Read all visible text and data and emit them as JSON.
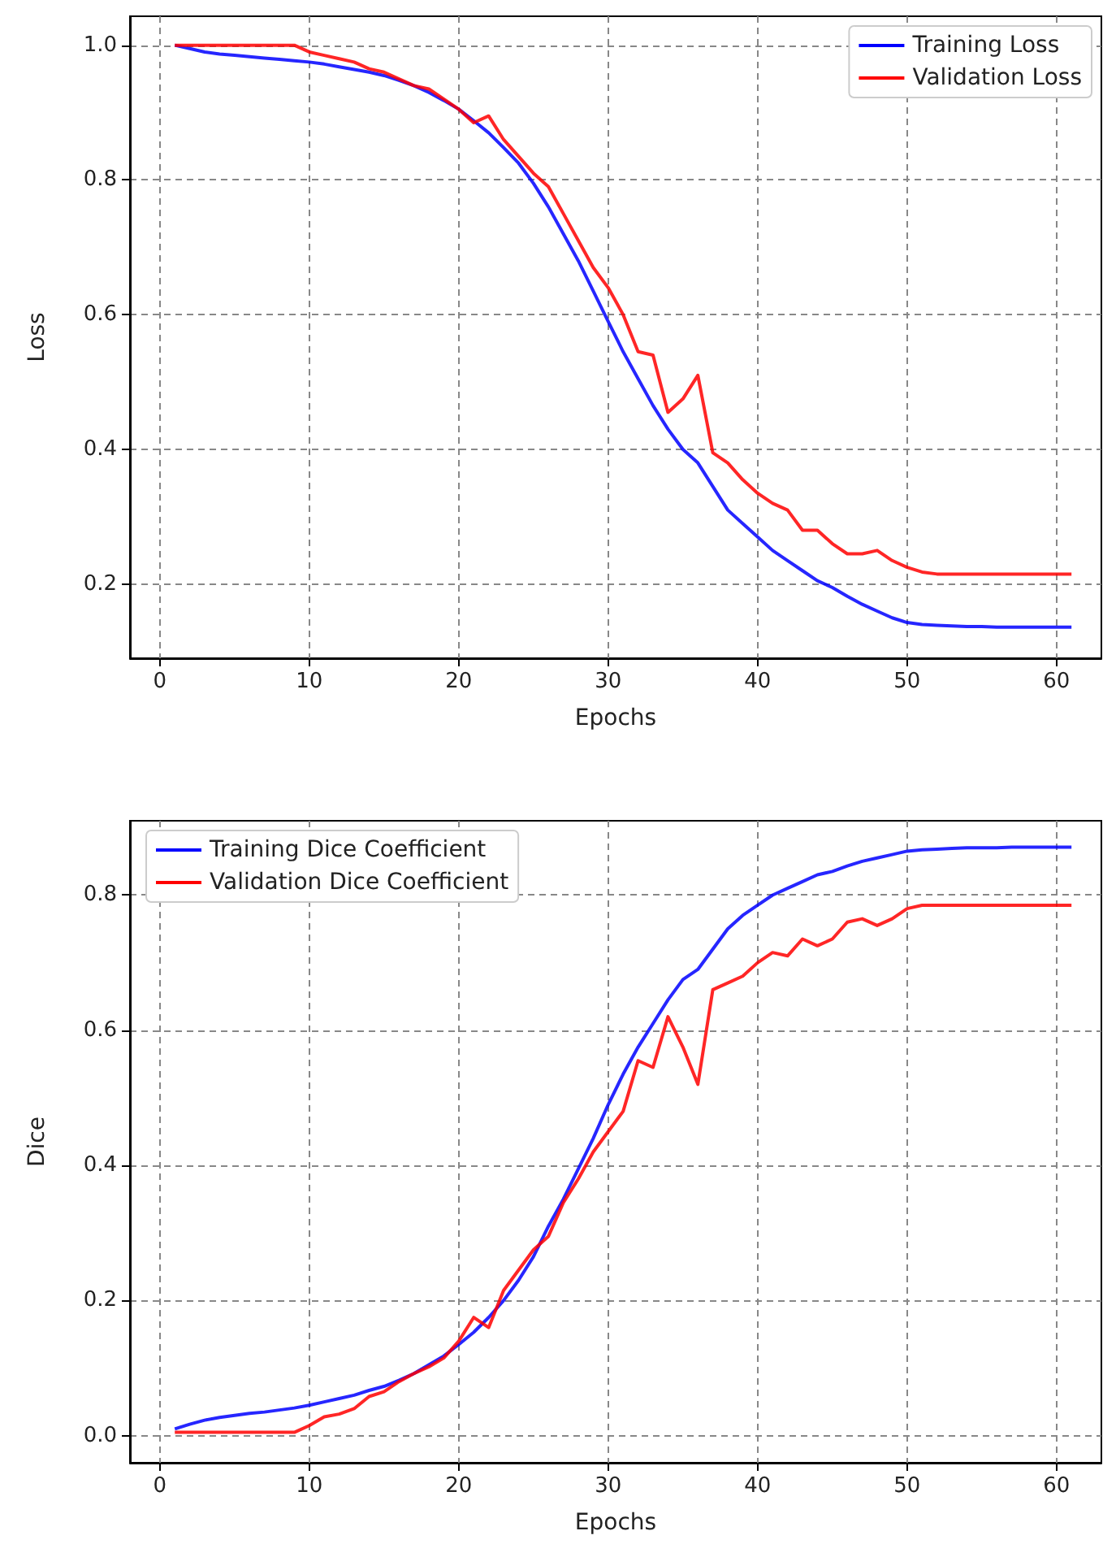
{
  "chart_data": [
    {
      "type": "line",
      "xlabel": "Epochs",
      "ylabel": "Loss",
      "x": [
        1,
        2,
        3,
        4,
        5,
        6,
        7,
        8,
        9,
        10,
        11,
        12,
        13,
        14,
        15,
        16,
        17,
        18,
        19,
        20,
        21,
        22,
        23,
        24,
        25,
        26,
        27,
        28,
        29,
        30,
        31,
        32,
        33,
        34,
        35,
        36,
        37,
        38,
        39,
        40,
        41,
        42,
        43,
        44,
        45,
        46,
        47,
        48,
        49,
        50,
        51,
        52,
        53,
        54,
        55,
        56,
        57,
        58,
        59,
        60,
        61
      ],
      "series": [
        {
          "name": "Training Loss",
          "color": "#0000ff",
          "values": [
            1.0,
            0.995,
            0.99,
            0.987,
            0.985,
            0.983,
            0.981,
            0.979,
            0.977,
            0.975,
            0.972,
            0.968,
            0.964,
            0.96,
            0.955,
            0.948,
            0.94,
            0.93,
            0.918,
            0.905,
            0.888,
            0.87,
            0.848,
            0.825,
            0.795,
            0.76,
            0.72,
            0.68,
            0.635,
            0.59,
            0.545,
            0.505,
            0.465,
            0.43,
            0.4,
            0.38,
            0.345,
            0.31,
            0.29,
            0.27,
            0.25,
            0.235,
            0.22,
            0.205,
            0.195,
            0.182,
            0.17,
            0.16,
            0.15,
            0.143,
            0.14,
            0.139,
            0.138,
            0.137,
            0.137,
            0.136,
            0.136,
            0.136,
            0.136,
            0.136,
            0.136
          ]
        },
        {
          "name": "Validation Loss",
          "color": "#ff0000",
          "values": [
            1.0,
            1.0,
            1.0,
            1.0,
            1.0,
            1.0,
            1.0,
            1.0,
            1.0,
            0.99,
            0.985,
            0.98,
            0.975,
            0.965,
            0.96,
            0.95,
            0.94,
            0.935,
            0.92,
            0.905,
            0.885,
            0.895,
            0.86,
            0.835,
            0.81,
            0.79,
            0.75,
            0.71,
            0.67,
            0.64,
            0.6,
            0.545,
            0.54,
            0.455,
            0.475,
            0.51,
            0.395,
            0.38,
            0.355,
            0.335,
            0.32,
            0.31,
            0.28,
            0.28,
            0.26,
            0.245,
            0.245,
            0.25,
            0.235,
            0.225,
            0.218,
            0.215,
            0.215,
            0.215,
            0.215,
            0.215,
            0.215,
            0.215,
            0.215,
            0.215,
            0.215
          ]
        }
      ],
      "xlim": [
        -2,
        63
      ],
      "xticks": [
        0,
        10,
        20,
        30,
        40,
        50,
        60
      ],
      "ylim": [
        0.09,
        1.043
      ],
      "yticks": [
        0.2,
        0.4,
        0.6,
        0.8,
        {
          "value": 1,
          "label": "1.0"
        }
      ],
      "grid": true,
      "legend": "top right",
      "marker": "none",
      "line_style": "solid"
    },
    {
      "type": "line",
      "xlabel": "Epochs",
      "ylabel": "Dice",
      "x": [
        1,
        2,
        3,
        4,
        5,
        6,
        7,
        8,
        9,
        10,
        11,
        12,
        13,
        14,
        15,
        16,
        17,
        18,
        19,
        20,
        21,
        22,
        23,
        24,
        25,
        26,
        27,
        28,
        29,
        30,
        31,
        32,
        33,
        34,
        35,
        36,
        37,
        38,
        39,
        40,
        41,
        42,
        43,
        44,
        45,
        46,
        47,
        48,
        49,
        50,
        51,
        52,
        53,
        54,
        55,
        56,
        57,
        58,
        59,
        60,
        61
      ],
      "series": [
        {
          "name": "Training Dice Coefficient",
          "color": "#0000ff",
          "values": [
            0.01,
            0.017,
            0.023,
            0.027,
            0.03,
            0.033,
            0.035,
            0.038,
            0.041,
            0.045,
            0.05,
            0.055,
            0.06,
            0.067,
            0.073,
            0.082,
            0.092,
            0.105,
            0.118,
            0.135,
            0.153,
            0.175,
            0.2,
            0.23,
            0.265,
            0.31,
            0.35,
            0.395,
            0.44,
            0.49,
            0.535,
            0.575,
            0.61,
            0.645,
            0.675,
            0.69,
            0.72,
            0.75,
            0.77,
            0.785,
            0.8,
            0.81,
            0.82,
            0.83,
            0.835,
            0.843,
            0.85,
            0.855,
            0.86,
            0.865,
            0.867,
            0.868,
            0.869,
            0.87,
            0.87,
            0.87,
            0.871,
            0.871,
            0.871,
            0.871,
            0.871
          ]
        },
        {
          "name": "Validation Dice Coefficient",
          "color": "#ff0000",
          "values": [
            0.005,
            0.005,
            0.005,
            0.005,
            0.005,
            0.005,
            0.005,
            0.005,
            0.005,
            0.015,
            0.028,
            0.032,
            0.04,
            0.058,
            0.065,
            0.08,
            0.092,
            0.102,
            0.115,
            0.14,
            0.175,
            0.16,
            0.215,
            0.245,
            0.275,
            0.295,
            0.345,
            0.38,
            0.42,
            0.45,
            0.48,
            0.555,
            0.545,
            0.62,
            0.575,
            0.52,
            0.66,
            0.67,
            0.68,
            0.7,
            0.715,
            0.71,
            0.735,
            0.725,
            0.735,
            0.76,
            0.765,
            0.755,
            0.765,
            0.78,
            0.785,
            0.785,
            0.785,
            0.785,
            0.785,
            0.785,
            0.785,
            0.785,
            0.785,
            0.785,
            0.785
          ]
        }
      ],
      "xlim": [
        -2,
        63
      ],
      "xticks": [
        0,
        10,
        20,
        30,
        40,
        50,
        60
      ],
      "ylim": [
        -0.04,
        0.91
      ],
      "yticks": [
        {
          "value": 0,
          "label": "0.0"
        },
        0.2,
        0.4,
        0.6,
        0.8
      ],
      "grid": true,
      "legend": "top left",
      "marker": "none",
      "line_style": "solid"
    }
  ]
}
